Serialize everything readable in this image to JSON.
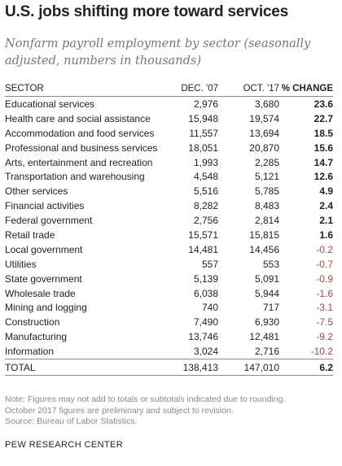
{
  "chart_data": {
    "type": "table",
    "title": "U.S. jobs shifting more toward services",
    "subtitle": "Nonfarm payroll employment by sector (seasonally adjusted, numbers in thousands)",
    "columns": [
      "SECTOR",
      "DEC. '07",
      "OCT. '17",
      "% CHANGE"
    ],
    "rows": [
      {
        "sector": "Educational services",
        "dec07": "2,976",
        "oct17": "3,680",
        "change": "23.6"
      },
      {
        "sector": "Health care and social assistance",
        "dec07": "15,948",
        "oct17": "19,574",
        "change": "22.7"
      },
      {
        "sector": "Accommodation and food services",
        "dec07": "11,557",
        "oct17": "13,694",
        "change": "18.5"
      },
      {
        "sector": "Professional and business services",
        "dec07": "18,051",
        "oct17": "20,870",
        "change": "15.6"
      },
      {
        "sector": "Arts, entertainment and recreation",
        "dec07": "1,993",
        "oct17": "2,285",
        "change": "14.7"
      },
      {
        "sector": "Transportation and warehousing",
        "dec07": "4,548",
        "oct17": "5,121",
        "change": "12.6"
      },
      {
        "sector": "Other services",
        "dec07": "5,516",
        "oct17": "5,785",
        "change": "4.9"
      },
      {
        "sector": "Financial activities",
        "dec07": "8,282",
        "oct17": "8,483",
        "change": "2.4"
      },
      {
        "sector": "Federal government",
        "dec07": "2,756",
        "oct17": "2,814",
        "change": "2.1"
      },
      {
        "sector": "Retail trade",
        "dec07": "15,571",
        "oct17": "15,815",
        "change": "1.6"
      },
      {
        "sector": "Local government",
        "dec07": "14,481",
        "oct17": "14,456",
        "change": "-0.2"
      },
      {
        "sector": "Utilities",
        "dec07": "557",
        "oct17": "553",
        "change": "-0.7"
      },
      {
        "sector": "State government",
        "dec07": "5,139",
        "oct17": "5,091",
        "change": "-0.9"
      },
      {
        "sector": "Wholesale trade",
        "dec07": "6,038",
        "oct17": "5,944",
        "change": "-1.6"
      },
      {
        "sector": "Mining and logging",
        "dec07": "740",
        "oct17": "717",
        "change": "-3.1"
      },
      {
        "sector": "Construction",
        "dec07": "7,490",
        "oct17": "6,930",
        "change": "-7.5"
      },
      {
        "sector": "Manufacturing",
        "dec07": "13,746",
        "oct17": "12,481",
        "change": "-9.2"
      },
      {
        "sector": "Information",
        "dec07": "3,024",
        "oct17": "2,716",
        "change": "-10.2"
      }
    ],
    "total": {
      "sector": "TOTAL",
      "dec07": "138,413",
      "oct17": "147,010",
      "change": "6.2"
    }
  },
  "colors": {
    "negative": "#b2443a",
    "text": "#222222",
    "muted": "#777777"
  },
  "notes": [
    "Note: Figures may not add to totals or subtotals indicated due to rounding.",
    "October 2017 figures are preliminary and subject to revision.",
    "Source: Bureau of Labor Statistics."
  ],
  "brand": "PEW RESEARCH CENTER"
}
